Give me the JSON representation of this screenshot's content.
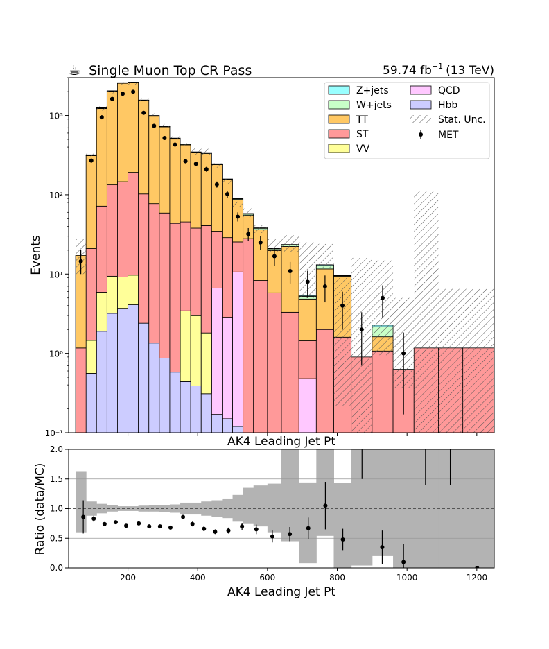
{
  "header": {
    "title_icon": "coffee-icon",
    "title_glyph": "☕",
    "title": "Single Muon Top CR Pass",
    "lumi_value": "59.74 fb",
    "lumi_exp": "−1",
    "lumi_energy": "(13 TeV)"
  },
  "chart_data": {
    "type": "bar",
    "stacked": true,
    "bin_edges": [
      50,
      80,
      110,
      140,
      170,
      200,
      230,
      260,
      290,
      320,
      350,
      380,
      410,
      440,
      470,
      500,
      530,
      560,
      600,
      640,
      690,
      740,
      790,
      840,
      900,
      960,
      1020,
      1090,
      1160,
      1250
    ],
    "x_axis_label": "AK4 Leading Jet Pt",
    "xlim": [
      30,
      1250
    ],
    "x_ticks": [
      200,
      400,
      600,
      800,
      1000,
      1200
    ],
    "top_panel": {
      "ylabel": "Events",
      "y_scale": "log",
      "ylim": [
        0.1,
        3000
      ],
      "y_tick_labels": [
        "10⁻¹",
        "10⁰",
        "10¹",
        "10²",
        "10³"
      ],
      "y_tick_values": [
        0.1,
        1,
        10,
        100,
        1000
      ],
      "series": [
        {
          "name": "Hbb",
          "color": "#ccccff",
          "values": [
            0,
            0.56,
            1.9,
            3.2,
            3.7,
            4.1,
            2.4,
            1.35,
            0.87,
            0.58,
            0.44,
            0.39,
            0.31,
            0.17,
            0.15,
            0.12,
            0,
            0,
            0,
            0,
            0,
            0,
            0,
            0,
            0,
            0,
            0,
            0,
            0
          ]
        },
        {
          "name": "QCD",
          "color": "#ffc8ff",
          "values": [
            0,
            0,
            0,
            0,
            0,
            0,
            0,
            0,
            0,
            0,
            0,
            0,
            0,
            6.5,
            2.7,
            10.5,
            0,
            0,
            0,
            0,
            0.48,
            0,
            0,
            0,
            0,
            0,
            0,
            0,
            0
          ]
        },
        {
          "name": "VV",
          "color": "#ffff99",
          "values": [
            0,
            0.9,
            4.0,
            6.2,
            5.5,
            5.6,
            0,
            0,
            0,
            0,
            3.0,
            2.6,
            1.5,
            0,
            0,
            0,
            0,
            0,
            0,
            0,
            0,
            0,
            0,
            0,
            0,
            0,
            0,
            0,
            0
          ]
        },
        {
          "name": "ST",
          "color": "#ff9999",
          "values": [
            1.17,
            19.5,
            66,
            124,
            137,
            182,
            100,
            76,
            58,
            43,
            42,
            35,
            39,
            28,
            26,
            14.8,
            28,
            8.3,
            5.8,
            3.3,
            0.96,
            2.0,
            1.6,
            0.9,
            1.07,
            0.63,
            1.17,
            1.17,
            1.17
          ]
        },
        {
          "name": "TT",
          "color": "#ffc864",
          "values": [
            16,
            290,
            1150,
            1880,
            2400,
            2400,
            1430,
            900,
            660,
            460,
            380,
            300,
            290,
            205,
            125,
            62,
            27,
            28,
            14,
            19,
            3.4,
            9.6,
            7.8,
            0,
            0.55,
            0,
            0,
            0,
            0
          ]
        },
        {
          "name": "W+jets",
          "color": "#c8ffc8",
          "values": [
            0,
            5,
            20,
            25,
            30,
            30,
            25,
            15,
            12,
            10,
            8,
            6,
            6,
            4,
            3,
            2,
            2,
            1.5,
            1.0,
            1.0,
            0.4,
            1.2,
            0.1,
            0,
            0.55,
            0,
            0,
            0,
            0
          ]
        },
        {
          "name": "Z+jets",
          "color": "#99ffff",
          "values": [
            0,
            3,
            10,
            12,
            15,
            15,
            10,
            8,
            6,
            5,
            4,
            3,
            3,
            2,
            1.5,
            1,
            1,
            0.5,
            0.3,
            0.3,
            0.12,
            0.3,
            0.1,
            0,
            0.1,
            0,
            0,
            0,
            0
          ]
        }
      ],
      "stat_unc_band": {
        "name": "Stat. Unc.",
        "lower": [
          10,
          300,
          1150,
          1900,
          2450,
          2450,
          1500,
          970,
          720,
          500,
          410,
          320,
          320,
          220,
          135,
          70,
          52,
          33,
          19,
          19,
          5,
          12,
          0.22,
          0,
          0.95,
          0.37,
          0,
          0,
          0
        ],
        "upper": [
          28,
          340,
          1300,
          2050,
          2620,
          2620,
          1620,
          1060,
          780,
          550,
          450,
          390,
          380,
          250,
          160,
          82,
          68,
          42,
          28,
          31,
          25,
          24,
          9,
          16,
          15,
          5,
          110,
          6.5,
          6.5
        ]
      },
      "data": {
        "name": "MET",
        "values": [
          14.5,
          270,
          950,
          1620,
          1880,
          1990,
          1080,
          740,
          520,
          430,
          265,
          245,
          210,
          135,
          102,
          53,
          32,
          25,
          16.8,
          10.9,
          8,
          7,
          4,
          2,
          5,
          1,
          0,
          0,
          0
        ],
        "err_low": [
          4.5,
          17,
          30,
          40,
          43,
          44,
          33,
          27,
          23,
          21,
          16,
          15,
          15,
          12,
          10,
          7,
          6,
          5,
          4,
          3.3,
          3,
          2.6,
          2,
          1.3,
          2.2,
          0.83,
          0,
          0,
          0
        ],
        "err_high": [
          5.5,
          17,
          30,
          40,
          43,
          44,
          33,
          27,
          23,
          21,
          16,
          15,
          15,
          12,
          10,
          7,
          6,
          5,
          4,
          3.3,
          3,
          2.6,
          2,
          1.3,
          2.2,
          0.83,
          0,
          0,
          0
        ]
      }
    },
    "ratio_panel": {
      "ylabel": "Ratio (data/MC)",
      "ylim": [
        0,
        2.0
      ],
      "y_ticks": [
        0.0,
        0.5,
        1.0,
        1.5,
        2.0
      ],
      "reference_line": 1.0,
      "band_lower": [
        0.6,
        0.88,
        0.92,
        0.95,
        0.96,
        0.96,
        0.95,
        0.95,
        0.94,
        0.93,
        0.9,
        0.9,
        0.88,
        0.86,
        0.84,
        0.78,
        0.74,
        0.7,
        0.6,
        0.45,
        0.08,
        0.54,
        0.0,
        0.04,
        0.2,
        0.0,
        0.0,
        0.0,
        0.0
      ],
      "band_upper": [
        1.62,
        1.12,
        1.08,
        1.06,
        1.04,
        1.04,
        1.05,
        1.06,
        1.06,
        1.07,
        1.1,
        1.1,
        1.12,
        1.14,
        1.17,
        1.23,
        1.35,
        1.39,
        1.42,
        2.0,
        1.44,
        2.0,
        1.43,
        2.0,
        2.0,
        2.0,
        2.0,
        2.0,
        2.0
      ],
      "points_x": [
        72,
        102,
        133,
        165,
        195,
        231,
        261,
        292,
        322,
        358,
        385,
        418,
        450,
        488,
        527,
        568,
        614,
        664,
        717,
        766,
        816,
        871,
        929,
        990,
        1053,
        1124,
        1201
      ],
      "points_y": [
        0.86,
        0.83,
        0.74,
        0.77,
        0.71,
        0.75,
        0.7,
        0.7,
        0.68,
        0.86,
        0.74,
        0.66,
        0.61,
        0.63,
        0.7,
        0.65,
        0.53,
        0.57,
        0.67,
        1.05,
        0.48,
        2.5,
        0.35,
        0.1,
        2.6,
        2.6,
        0.0
      ],
      "err": [
        0.28,
        0.05,
        0.03,
        0.03,
        0.02,
        0.02,
        0.02,
        0.02,
        0.03,
        0.03,
        0.04,
        0.04,
        0.04,
        0.05,
        0.06,
        0.08,
        0.1,
        0.12,
        0.18,
        0.4,
        0.18,
        1.0,
        0.28,
        0.3,
        1.2,
        1.2,
        0.0
      ]
    }
  }
}
